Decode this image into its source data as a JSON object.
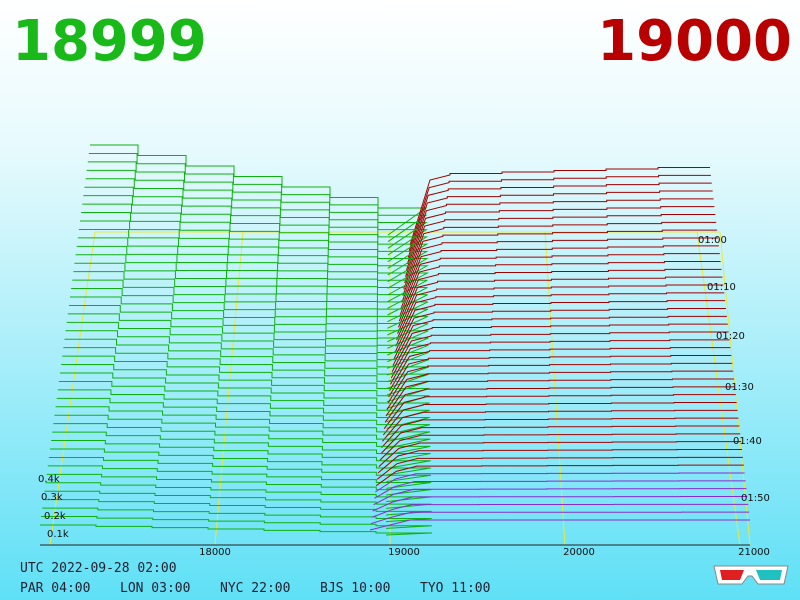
{
  "header": {
    "bid": "18999",
    "ask": "19000"
  },
  "price_axis": [
    "18000",
    "19000",
    "20000",
    "21000"
  ],
  "time_axis": [
    "01:00",
    "01:10",
    "01:20",
    "01:30",
    "01:40",
    "01:50"
  ],
  "depth_axis": [
    "0.4k",
    "0.3k",
    "0.2k",
    "0.1k"
  ],
  "footer": {
    "utc": "UTC 2022-09-28 02:00",
    "zones": [
      "PAR 04:00",
      "LON 03:00",
      "NYC 22:00",
      "BJS 10:00",
      "TYO 11:00"
    ]
  }
}
